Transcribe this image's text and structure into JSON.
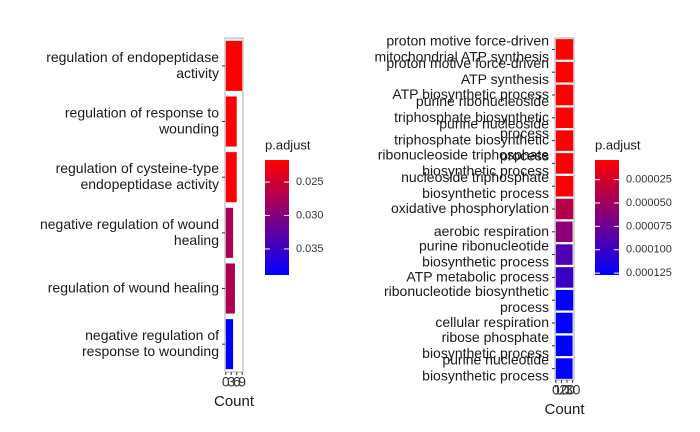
{
  "chart_data": [
    {
      "type": "bar",
      "orientation": "horizontal",
      "categories": [
        "regulation of endopeptidase activity",
        "regulation of response to wounding",
        "regulation of cysteine-type endopeptidase activity",
        "negative regulation of wound healing",
        "regulation of wound healing",
        "negative regulation of response to wounding"
      ],
      "values": [
        9,
        6,
        6,
        4,
        5,
        4
      ],
      "color_values": [
        0.0218,
        0.0218,
        0.0218,
        0.0272,
        0.0272,
        0.0388
      ],
      "xlabel": "Count",
      "xlim": [
        -0.45,
        9.45
      ],
      "xticks": [
        0,
        3,
        6,
        9
      ],
      "colorbar": {
        "title": "p.adjust",
        "clim": [
          0.0217,
          0.0389
        ],
        "colors": [
          "#FF0000",
          "#0000FF"
        ],
        "ticks": [
          0.025,
          {
            "value": 0.03,
            "label": "0.030"
          },
          0.035
        ]
      }
    },
    {
      "type": "bar",
      "orientation": "horizontal",
      "categories": [
        "proton motive force-driven mitochondrial ATP synthesis",
        "proton motive force-driven ATP synthesis",
        "ATP biosynthetic process",
        "purine ribonucleoside triphosphate biosynthetic process",
        "purine nucleoside triphosphate biosynthetic process",
        "ribonucleoside triphosphate biosynthetic process",
        "nucleoside triphosphate biosynthetic process",
        "oxidative phosphorylation",
        "aerobic respiration",
        "purine ribonucleotide biosynthetic process",
        "ATP metabolic process",
        "ribonucleotide biosynthetic process",
        "cellular respiration",
        "ribose phosphate biosynthetic process",
        "purine nucleotide biosynthetic process"
      ],
      "values": [
        31,
        31,
        31,
        31,
        31,
        31,
        31,
        31,
        30,
        30,
        31,
        31,
        30,
        30,
        30
      ],
      "color_values": [
        5e-06,
        5e-06,
        5e-06,
        6e-06,
        6e-06,
        8e-06,
        8e-06,
        4e-05,
        6e-05,
        9e-05,
        0.0001,
        0.000126,
        0.000126,
        0.000126,
        0.000126
      ],
      "xlabel": "Count",
      "xlim": [
        -1.5,
        32.5
      ],
      "xticks": [
        0,
        10,
        20,
        30
      ],
      "colorbar": {
        "title": "p.adjust",
        "clim": [
          4e-06,
          0.000127
        ],
        "colors": [
          "#FF0000",
          "#0000FF"
        ],
        "ticks": [
          2.5e-05,
          {
            "value": 5e-05,
            "label": "0.000050"
          },
          7.5e-05,
          {
            "value": 0.0001,
            "label": "0.000100"
          },
          0.000125
        ]
      }
    }
  ]
}
